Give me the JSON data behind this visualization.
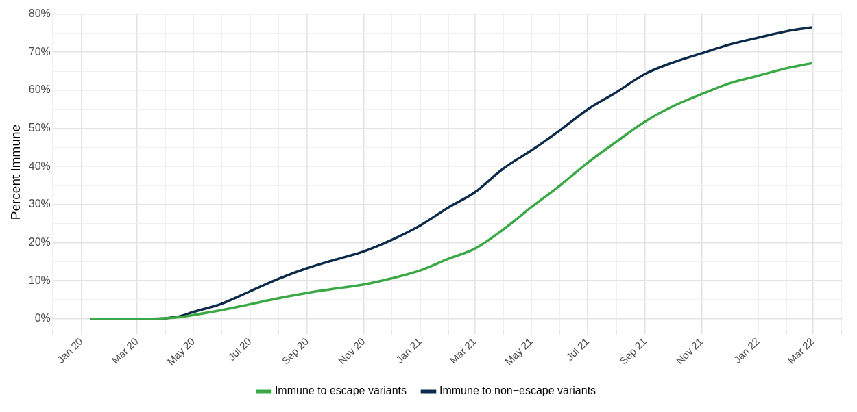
{
  "chart_data": {
    "type": "line",
    "ylabel": "Percent Immune",
    "x": [
      "2020-01-11",
      "2020-03-16",
      "2020-04-15",
      "2020-05-01",
      "2020-06-01",
      "2020-07-01",
      "2020-08-01",
      "2020-09-01",
      "2020-10-01",
      "2020-11-01",
      "2020-12-01",
      "2021-01-01",
      "2021-02-01",
      "2021-03-01",
      "2021-04-01",
      "2021-05-01",
      "2021-06-01",
      "2021-07-01",
      "2021-08-01",
      "2021-09-01",
      "2021-10-01",
      "2021-11-01",
      "2021-12-01",
      "2022-01-01",
      "2022-02-01",
      "2022-02-28"
    ],
    "series": [
      {
        "name": "Immune to escape variants",
        "color": "#3aa845",
        "values": [
          0,
          0,
          0.4,
          1,
          2.3,
          3.8,
          5.4,
          6.8,
          7.9,
          9,
          10.6,
          12.7,
          15.8,
          18.4,
          23.5,
          29.3,
          35,
          41,
          46.5,
          51.8,
          55.8,
          59,
          61.8,
          63.8,
          65.8,
          67.1
        ]
      },
      {
        "name": "Immune to non−escape variants",
        "color": "#0c2a4a",
        "values": [
          0,
          0,
          0.6,
          1.8,
          4,
          7.2,
          10.5,
          13.3,
          15.5,
          17.7,
          20.7,
          24.5,
          29.3,
          33.2,
          39.5,
          44.2,
          49.5,
          55,
          59.5,
          64.3,
          67.3,
          69.7,
          72,
          73.8,
          75.5,
          76.5
        ]
      }
    ],
    "xlim": [
      "2019-12-01",
      "2022-04-02"
    ],
    "xticks": [
      {
        "value": "2019-12-01",
        "label": null
      },
      {
        "value": "2020-01-01",
        "label": "Jan 20"
      },
      {
        "value": "2020-02-01",
        "label": null
      },
      {
        "value": "2020-03-01",
        "label": "Mar 20"
      },
      {
        "value": "2020-04-01",
        "label": null
      },
      {
        "value": "2020-05-01",
        "label": "May 20"
      },
      {
        "value": "2020-06-01",
        "label": null
      },
      {
        "value": "2020-07-01",
        "label": "Jul 20"
      },
      {
        "value": "2020-08-01",
        "label": null
      },
      {
        "value": "2020-09-01",
        "label": "Sep 20"
      },
      {
        "value": "2020-10-01",
        "label": null
      },
      {
        "value": "2020-11-01",
        "label": "Nov 20"
      },
      {
        "value": "2020-12-01",
        "label": null
      },
      {
        "value": "2021-01-01",
        "label": "Jan 21"
      },
      {
        "value": "2021-02-01",
        "label": null
      },
      {
        "value": "2021-03-01",
        "label": "Mar 21"
      },
      {
        "value": "2021-04-01",
        "label": null
      },
      {
        "value": "2021-05-01",
        "label": "May 21"
      },
      {
        "value": "2021-06-01",
        "label": null
      },
      {
        "value": "2021-07-01",
        "label": "Jul 21"
      },
      {
        "value": "2021-08-01",
        "label": null
      },
      {
        "value": "2021-09-01",
        "label": "Sep 21"
      },
      {
        "value": "2021-10-01",
        "label": null
      },
      {
        "value": "2021-11-01",
        "label": "Nov 21"
      },
      {
        "value": "2021-12-01",
        "label": null
      },
      {
        "value": "2022-01-01",
        "label": "Jan 22"
      },
      {
        "value": "2022-02-01",
        "label": null
      },
      {
        "value": "2022-03-01",
        "label": "Mar 22"
      },
      {
        "value": "2022-04-01",
        "label": null
      }
    ],
    "ylim": [
      -3,
      80
    ],
    "yticks": [
      {
        "value": 0,
        "label": "0%"
      },
      {
        "value": 5,
        "label": null
      },
      {
        "value": 10,
        "label": "10%"
      },
      {
        "value": 15,
        "label": null
      },
      {
        "value": 20,
        "label": "20%"
      },
      {
        "value": 25,
        "label": null
      },
      {
        "value": 30,
        "label": "30%"
      },
      {
        "value": 35,
        "label": null
      },
      {
        "value": 40,
        "label": "40%"
      },
      {
        "value": 45,
        "label": null
      },
      {
        "value": 50,
        "label": "50%"
      },
      {
        "value": 55,
        "label": null
      },
      {
        "value": 60,
        "label": "60%"
      },
      {
        "value": 65,
        "label": null
      },
      {
        "value": 70,
        "label": "70%"
      },
      {
        "value": 75,
        "label": null
      },
      {
        "value": 80,
        "label": "80%"
      }
    ],
    "grid": true,
    "legend": "bottom",
    "marker": "none",
    "line_style": "solid"
  }
}
